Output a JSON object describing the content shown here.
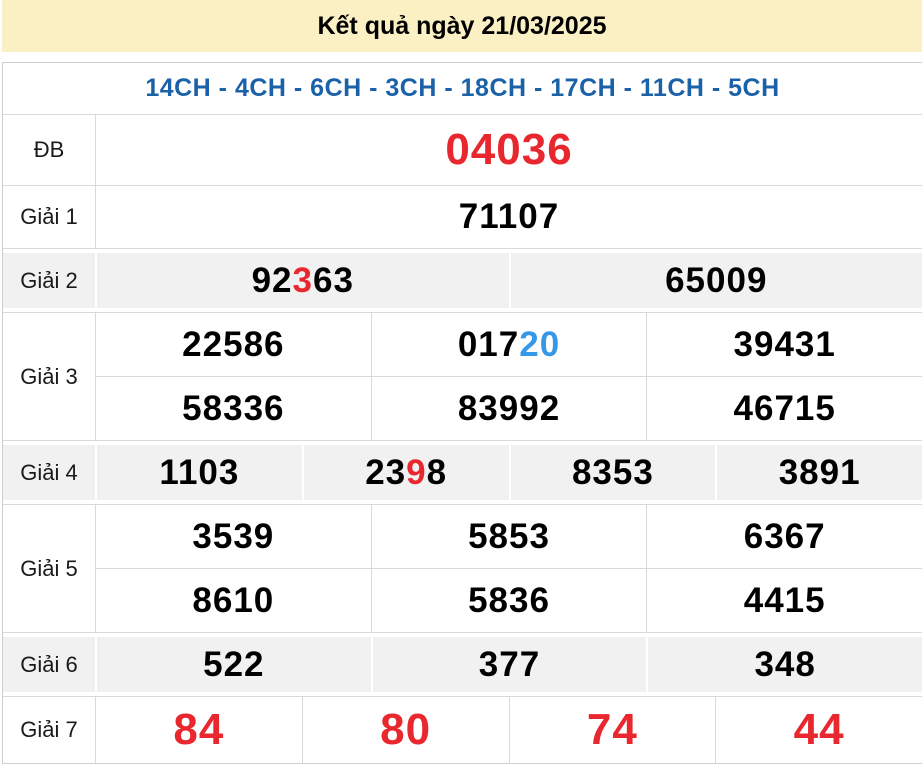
{
  "header": {
    "title": "Kết quả ngày 21/03/2025"
  },
  "subtitle": {
    "text": "14CH - 4CH - 6CH - 3CH - 18CH - 17CH - 11CH - 5CH"
  },
  "colors": {
    "banner_bg": "#FBF0C3",
    "subtitle_text": "#1B61A8",
    "highlight_red": "#E8282E",
    "highlight_blue": "#3598E8",
    "row_shade": "#F1F1F1",
    "border": "#D9D9D9"
  },
  "rows": [
    {
      "key": "db",
      "label": "ĐB",
      "shade": false,
      "size": "xl",
      "lines": [
        [
          [
            {
              "t": "04036",
              "c": "red"
            }
          ]
        ]
      ]
    },
    {
      "key": "giai-1",
      "label": "Giải 1",
      "shade": false,
      "size": "md",
      "lines": [
        [
          [
            {
              "t": "71107"
            }
          ]
        ]
      ]
    },
    {
      "key": "giai-2",
      "label": "Giải 2",
      "shade": true,
      "size": "md",
      "lines": [
        [
          [
            {
              "t": "92"
            },
            {
              "t": "3",
              "c": "red"
            },
            {
              "t": "63"
            }
          ],
          [
            {
              "t": "65009"
            }
          ]
        ]
      ]
    },
    {
      "key": "giai-3",
      "label": "Giải 3",
      "shade": false,
      "size": "md",
      "lines": [
        [
          [
            {
              "t": "22586"
            }
          ],
          [
            {
              "t": "017"
            },
            {
              "t": "20",
              "c": "blue"
            }
          ],
          [
            {
              "t": "39431"
            }
          ]
        ],
        [
          [
            {
              "t": "58336"
            }
          ],
          [
            {
              "t": "83992"
            }
          ],
          [
            {
              "t": "46715"
            }
          ]
        ]
      ]
    },
    {
      "key": "giai-4",
      "label": "Giải 4",
      "shade": true,
      "size": "md",
      "lines": [
        [
          [
            {
              "t": "1103"
            }
          ],
          [
            {
              "t": "23"
            },
            {
              "t": "9",
              "c": "red"
            },
            {
              "t": "8"
            }
          ],
          [
            {
              "t": "8353"
            }
          ],
          [
            {
              "t": "3891"
            }
          ]
        ]
      ]
    },
    {
      "key": "giai-5",
      "label": "Giải 5",
      "shade": false,
      "size": "md",
      "lines": [
        [
          [
            {
              "t": "3539"
            }
          ],
          [
            {
              "t": "5853"
            }
          ],
          [
            {
              "t": "6367"
            }
          ]
        ],
        [
          [
            {
              "t": "8610"
            }
          ],
          [
            {
              "t": "5836"
            }
          ],
          [
            {
              "t": "4415"
            }
          ]
        ]
      ]
    },
    {
      "key": "giai-6",
      "label": "Giải 6",
      "shade": true,
      "size": "md",
      "lines": [
        [
          [
            {
              "t": "522"
            }
          ],
          [
            {
              "t": "377"
            }
          ],
          [
            {
              "t": "348"
            }
          ]
        ]
      ]
    },
    {
      "key": "giai-7",
      "label": "Giải 7",
      "shade": false,
      "size": "lg",
      "lines": [
        [
          [
            {
              "t": "84",
              "c": "red"
            }
          ],
          [
            {
              "t": "80",
              "c": "red"
            }
          ],
          [
            {
              "t": "74",
              "c": "red"
            }
          ],
          [
            {
              "t": "44",
              "c": "red"
            }
          ]
        ]
      ]
    }
  ]
}
